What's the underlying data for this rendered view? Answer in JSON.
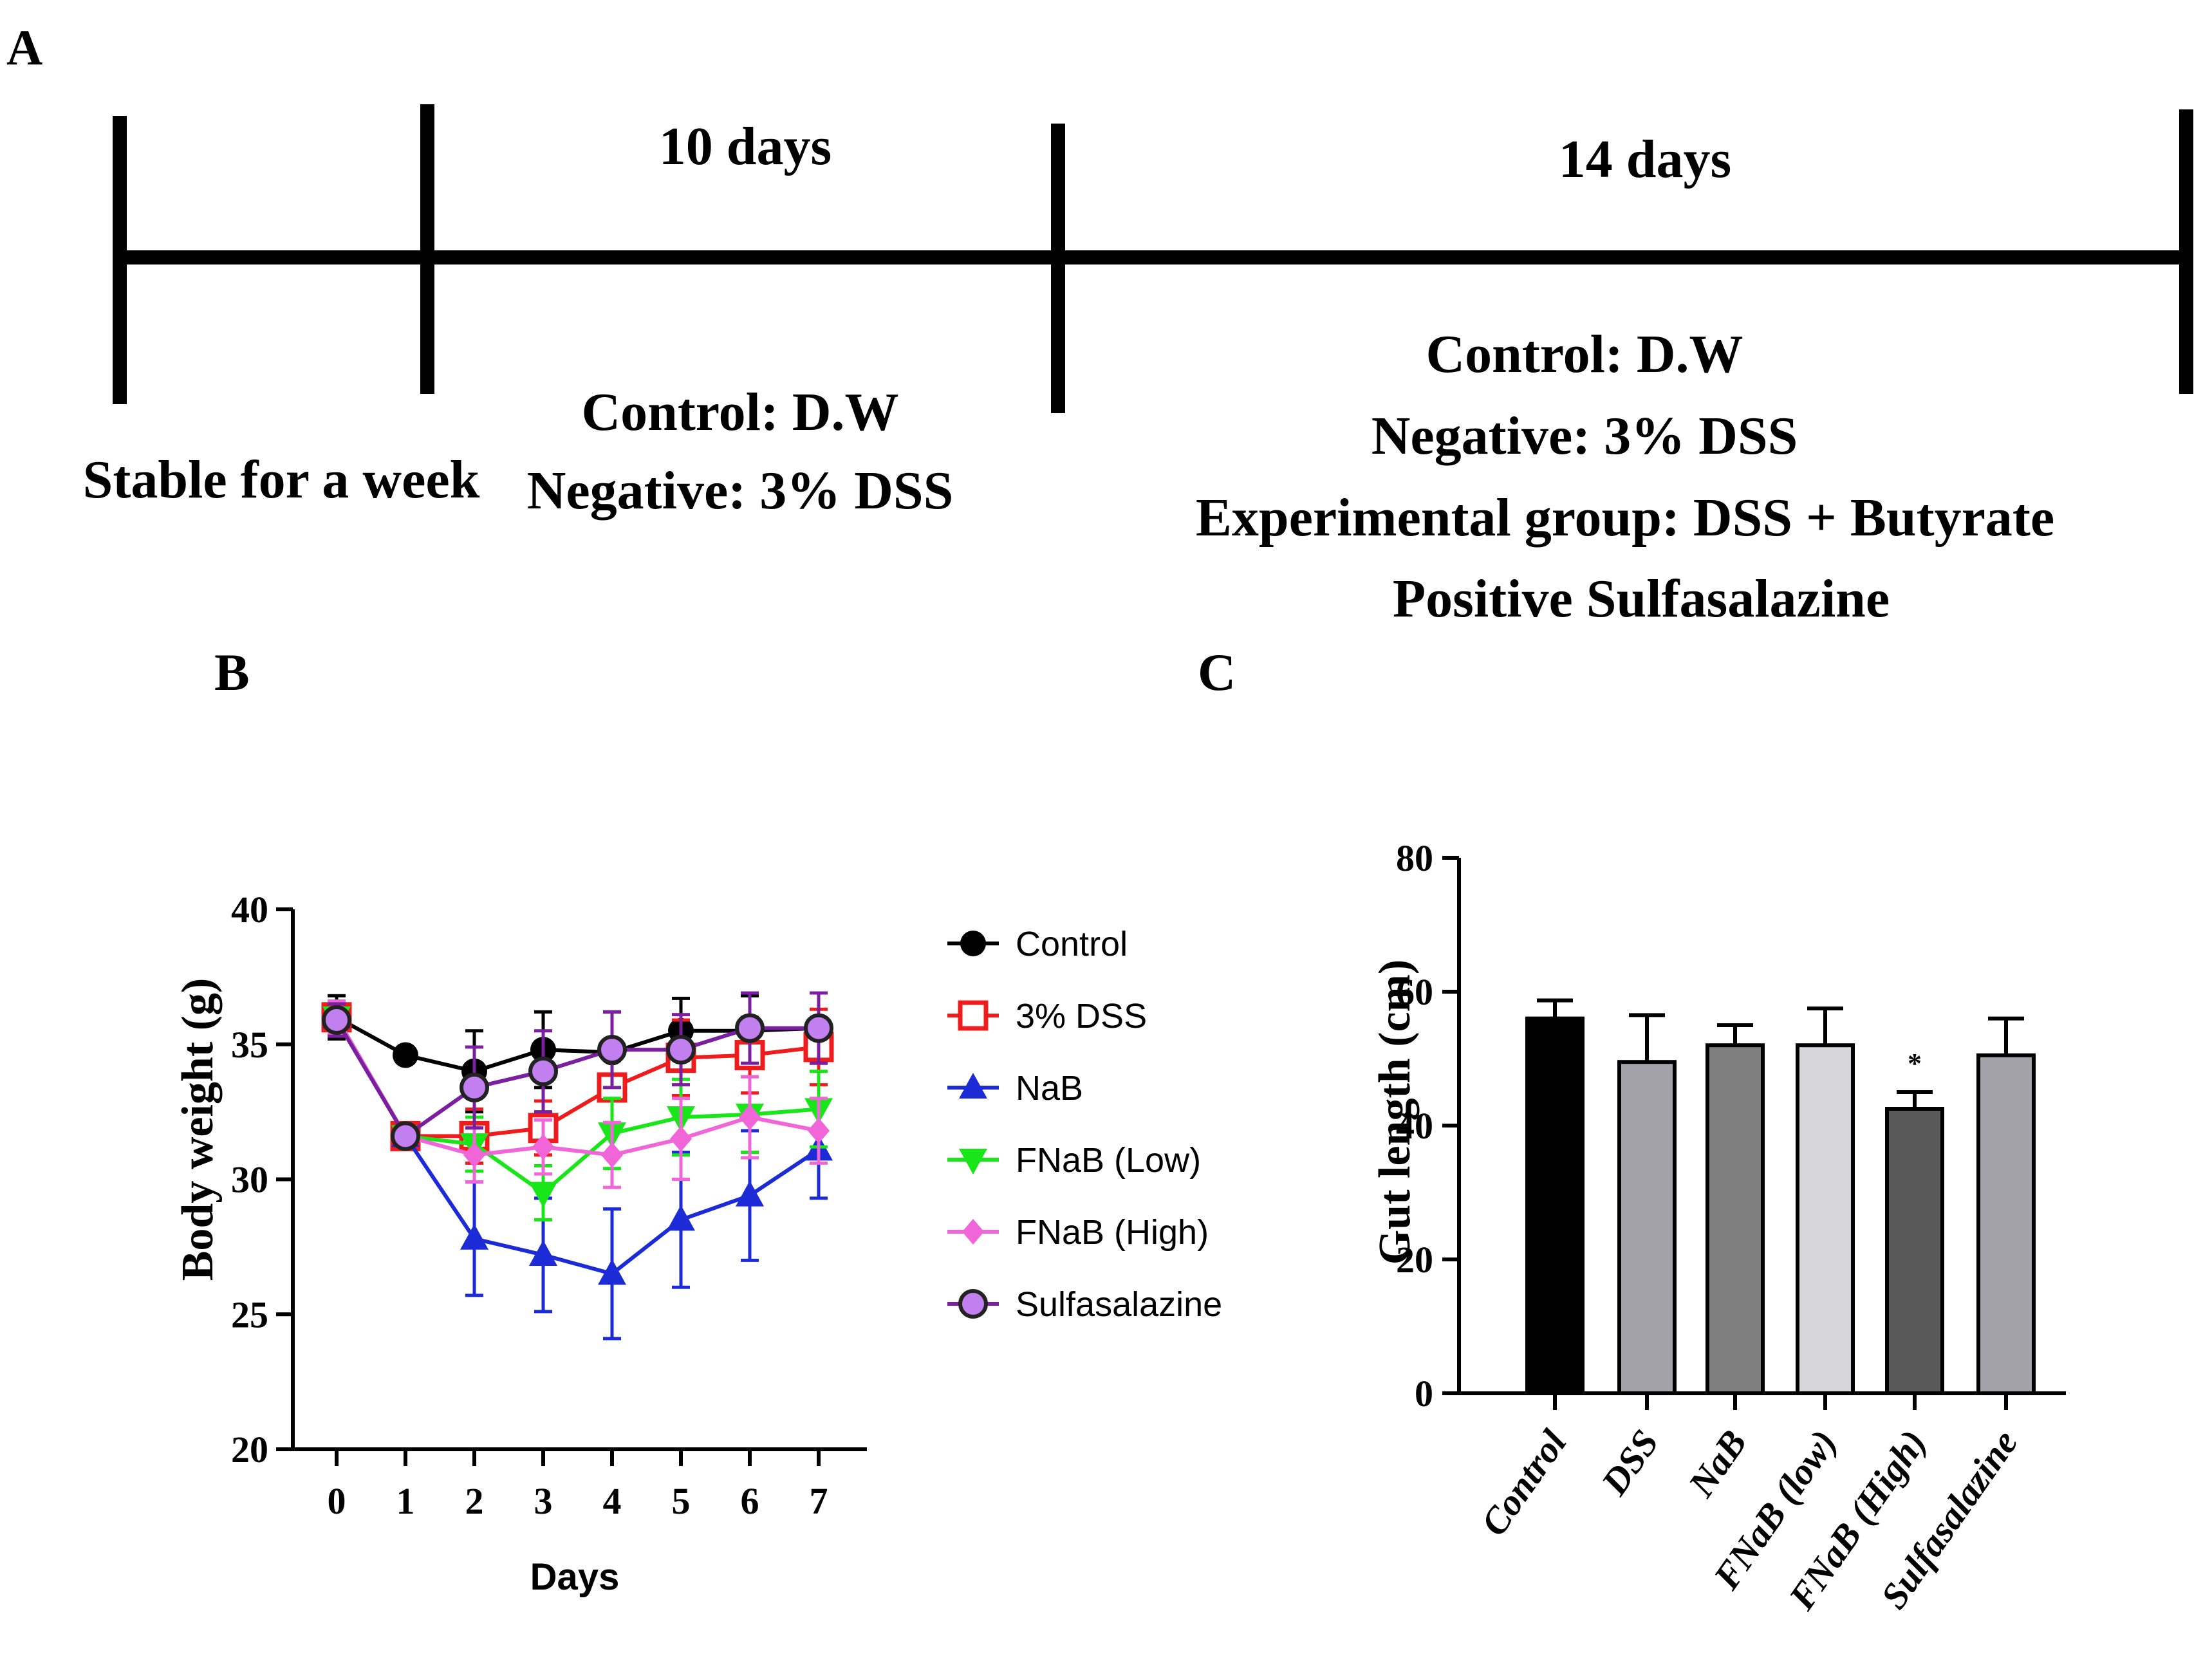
{
  "panel_labels": {
    "a": "A",
    "b": "B",
    "c": "C"
  },
  "timeline": {
    "segment1_bottom": "Stable for a week",
    "segment2_top": "10 days",
    "segment2_bottom": [
      "Control: D.W",
      "Negative: 3% DSS"
    ],
    "segment3_top": "14 days",
    "segment3_bottom": [
      "Control: D.W",
      "Negative: 3% DSS",
      "Experimental group: DSS + Butyrate",
      "Positive Sulfasalazine"
    ]
  },
  "chart_data": [
    {
      "type": "line",
      "xlabel": "Days",
      "ylabel": "Body weight (g)",
      "ylim": [
        20,
        40
      ],
      "yticks": [
        20,
        25,
        30,
        35,
        40
      ],
      "x": [
        0,
        1,
        2,
        3,
        4,
        5,
        6,
        7
      ],
      "legend_position": "right",
      "series": [
        {
          "name": "Control",
          "color": "#000000",
          "marker": "circle-filled",
          "values": [
            36.0,
            34.6,
            34.0,
            34.8,
            34.7,
            35.5,
            35.5,
            35.6
          ],
          "errors": [
            0.8,
            0.2,
            1.5,
            1.4,
            1.5,
            1.2,
            1.3,
            1.3
          ]
        },
        {
          "name": "3% DSS",
          "color": "#ee1c1c",
          "marker": "square-open",
          "values": [
            36.0,
            31.6,
            31.6,
            31.9,
            33.4,
            34.5,
            34.6,
            34.9
          ],
          "errors": [
            0.6,
            0.4,
            1.0,
            1.0,
            1.3,
            1.4,
            1.4,
            1.4
          ]
        },
        {
          "name": "NaB",
          "color": "#1c2bd6",
          "marker": "triangle-up",
          "values": [
            36.0,
            31.6,
            27.8,
            27.2,
            26.5,
            28.5,
            29.4,
            31.1
          ],
          "errors": [
            0.6,
            0.3,
            2.1,
            2.1,
            2.4,
            2.5,
            2.4,
            1.8
          ]
        },
        {
          "name": "FNaB (Low)",
          "color": "#19e619",
          "marker": "triangle-down",
          "values": [
            36.0,
            31.6,
            31.3,
            29.5,
            31.7,
            32.3,
            32.4,
            32.6
          ],
          "errors": [
            0.6,
            0.3,
            1.0,
            1.0,
            1.3,
            1.4,
            1.4,
            1.4
          ]
        },
        {
          "name": "FNaB (High)",
          "color": "#f065d8",
          "marker": "diamond",
          "values": [
            36.0,
            31.6,
            30.9,
            31.2,
            30.9,
            31.5,
            32.3,
            31.8
          ],
          "errors": [
            0.6,
            0.3,
            1.0,
            1.0,
            1.2,
            1.5,
            1.5,
            1.2
          ]
        },
        {
          "name": "Sulfasalazine",
          "color": "#7a1fa0",
          "fill": "#c17ff0",
          "marker": "circle-purple",
          "values": [
            35.9,
            31.6,
            33.4,
            34.0,
            34.8,
            34.8,
            35.6,
            35.6
          ],
          "errors": [
            0.6,
            0.3,
            1.5,
            1.5,
            1.4,
            1.3,
            1.3,
            1.3
          ]
        }
      ]
    },
    {
      "type": "bar",
      "xlabel": "",
      "ylabel": "Gut length (cm)",
      "ylim": [
        0,
        80
      ],
      "yticks": [
        0,
        20,
        40,
        60,
        80
      ],
      "categories": [
        "Control",
        "DSS",
        "NaB",
        "FNaB (low)",
        "FNaB (High)",
        "Sulfasalazine"
      ],
      "values": [
        56,
        49.5,
        52,
        52,
        42.5,
        50.5
      ],
      "errors": [
        2.7,
        7,
        3,
        5.5,
        2.5,
        5.5
      ],
      "colors": [
        "#000000",
        "#a2a2a8",
        "#7f7f7f",
        "#d7d7d9",
        "#595959",
        "#a2a2a8"
      ],
      "annotations": [
        {
          "category": "FNaB (High)",
          "text": "*"
        }
      ]
    }
  ]
}
